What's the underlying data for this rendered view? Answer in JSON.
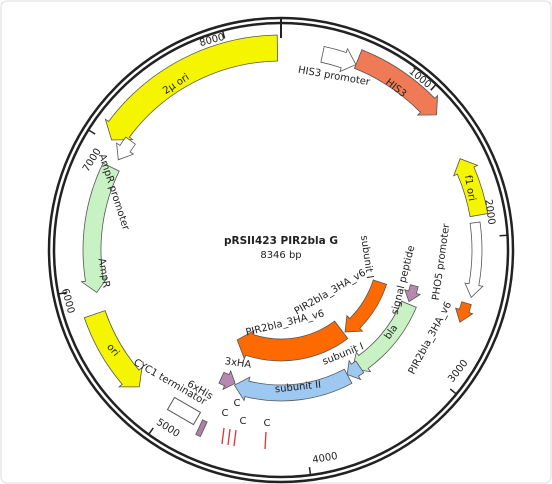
{
  "title": "pRSII423 PIR2bla G",
  "length": "8346 bp",
  "ticks": [
    1000,
    2000,
    3000,
    4000,
    5000,
    6000,
    7000,
    8000
  ],
  "features": [
    {
      "label": "2µ ori"
    },
    {
      "label": "HIS3 promoter"
    },
    {
      "label": "HIS3"
    },
    {
      "label": "f1 ori"
    },
    {
      "label": "PHO5 promoter"
    },
    {
      "label": "PIR2bla_3HA_v6"
    },
    {
      "label": "signal peptide"
    },
    {
      "label": "bla"
    },
    {
      "label": "subunit I"
    },
    {
      "label": "PIR2bla_3HA_v6"
    },
    {
      "label": "PIR2bla_3HA_v6"
    },
    {
      "label": "subunit I"
    },
    {
      "label": "subunit II"
    },
    {
      "label": "3xHA"
    },
    {
      "label": "6xHis"
    },
    {
      "label": "CYC1 terminator"
    },
    {
      "label": "ori"
    },
    {
      "label": "AmpR"
    },
    {
      "label": "AmpR promoter"
    }
  ],
  "sites": [
    "C",
    "C",
    "C",
    "C"
  ]
}
